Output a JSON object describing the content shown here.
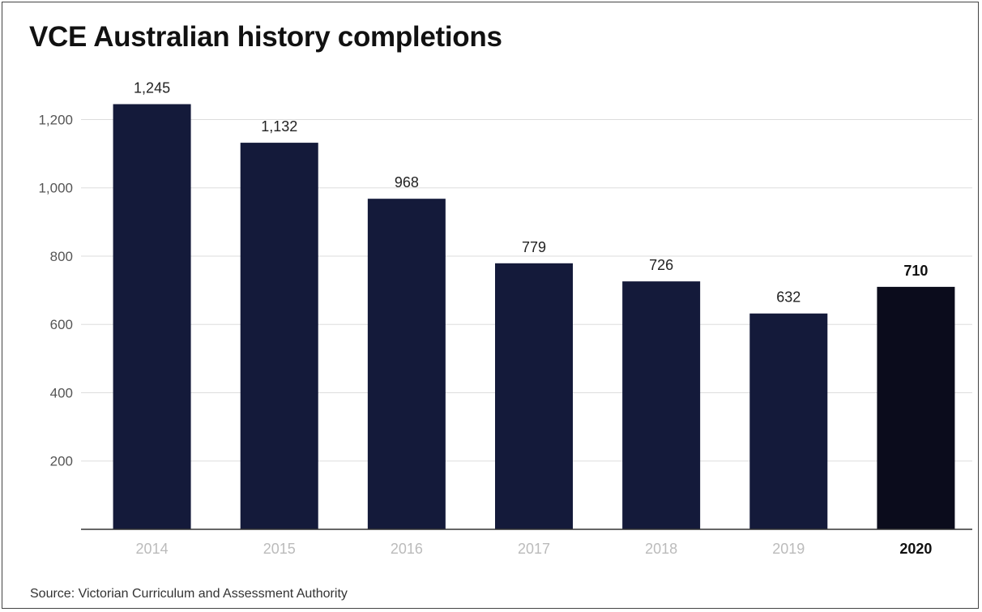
{
  "chart_data": {
    "type": "bar",
    "title": "VCE Australian history completions",
    "source": "Source: Victorian Curriculum and Assessment Authority",
    "categories": [
      "2014",
      "2015",
      "2016",
      "2017",
      "2018",
      "2019",
      "2020"
    ],
    "values": [
      1245,
      1132,
      968,
      779,
      726,
      632,
      710
    ],
    "value_labels": [
      "1,245",
      "1,132",
      "968",
      "779",
      "726",
      "632",
      "710"
    ],
    "highlight_category": "2020",
    "xlabel": "",
    "ylabel": "",
    "ylim": [
      0,
      1200
    ],
    "yticks": [
      200,
      400,
      600,
      800,
      1000,
      1200
    ],
    "ytick_labels": [
      "200",
      "400",
      "600",
      "800",
      "1,000",
      "1,200"
    ],
    "grid": true,
    "colors": {
      "bar": "#141a3a",
      "highlight_bar": "#0b0c1c",
      "grid": "#dddddd",
      "axis": "#333333"
    }
  }
}
